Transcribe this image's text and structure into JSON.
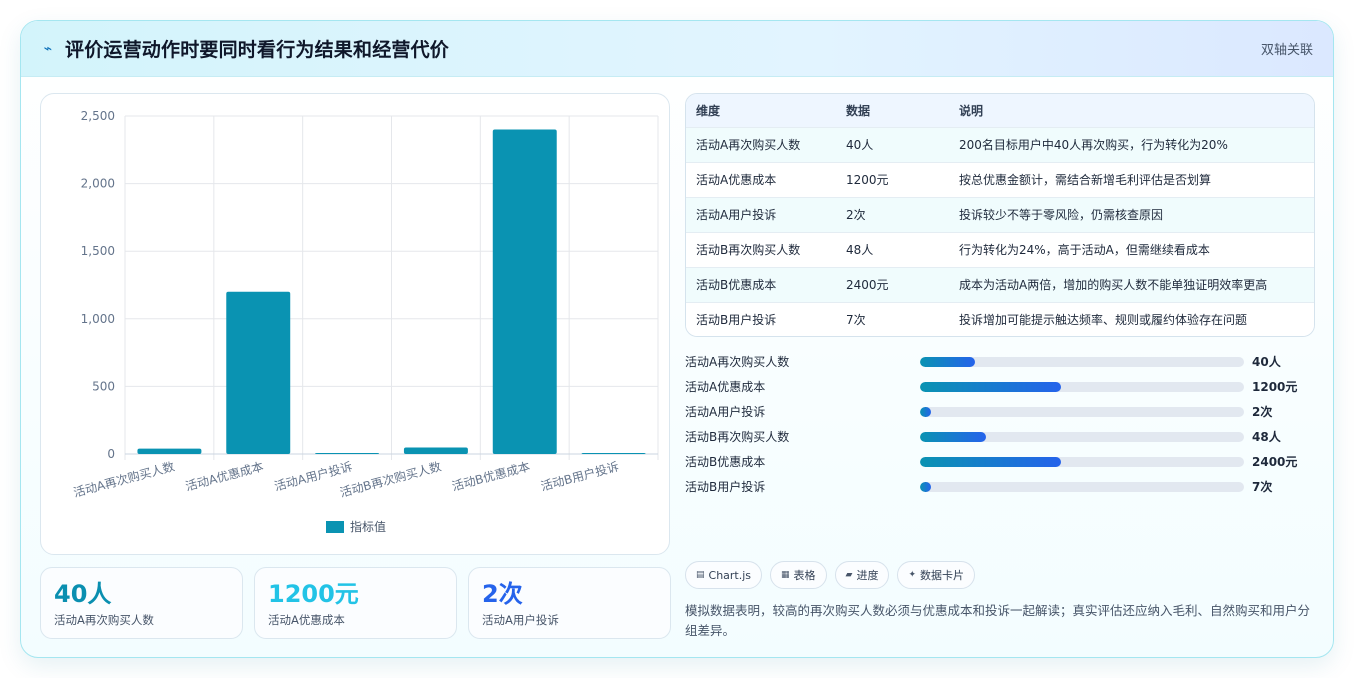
{
  "header": {
    "title": "评价运营动作时要同时看行为结果和经营代价",
    "tag": "双轴关联",
    "icon": "lightning-icon"
  },
  "chart_data": {
    "type": "bar",
    "categories": [
      "活动A再次购买人数",
      "活动A优惠成本",
      "活动A用户投诉",
      "活动B再次购买人数",
      "活动B优惠成本",
      "活动B用户投诉"
    ],
    "series": [
      {
        "name": "指标值",
        "values": [
          40,
          1200,
          2,
          48,
          2400,
          7
        ],
        "color": "#0a93b2"
      }
    ],
    "ylim": [
      0,
      2500
    ],
    "yticks": [
      "0",
      "500",
      "1,000",
      "1,500",
      "2,000",
      "2,500"
    ],
    "grid": true,
    "legend": "bottom"
  },
  "kpis": [
    {
      "value": "40人",
      "label": "活动A再次购买人数",
      "color": "#0a8fb0"
    },
    {
      "value": "1200元",
      "label": "活动A优惠成本",
      "color": "#22c3e6"
    },
    {
      "value": "2次",
      "label": "活动A用户投诉",
      "color": "#2563eb"
    }
  ],
  "table": {
    "headers": [
      "维度",
      "数据",
      "说明"
    ],
    "rows": [
      [
        "活动A再次购买人数",
        "40人",
        "200名目标用户中40人再次购买，行为转化为20%"
      ],
      [
        "活动A优惠成本",
        "1200元",
        "按总优惠金额计，需结合新增毛利评估是否划算"
      ],
      [
        "活动A用户投诉",
        "2次",
        "投诉较少不等于零风险，仍需核查原因"
      ],
      [
        "活动B再次购买人数",
        "48人",
        "行为转化为24%，高于活动A，但需继续看成本"
      ],
      [
        "活动B优惠成本",
        "2400元",
        "成本为活动A两倍，增加的购买人数不能单独证明效率更高"
      ],
      [
        "活动B用户投诉",
        "7次",
        "投诉增加可能提示触达频率、规则或履约体验存在问题"
      ]
    ]
  },
  "progress": [
    {
      "label": "活动A再次购买人数",
      "value": "40人",
      "fraction": 0.17
    },
    {
      "label": "活动A优惠成本",
      "value": "1200元",
      "fraction": 0.435
    },
    {
      "label": "活动A用户投诉",
      "value": "2次",
      "fraction": 0.035
    },
    {
      "label": "活动B再次购买人数",
      "value": "48人",
      "fraction": 0.205
    },
    {
      "label": "活动B优惠成本",
      "value": "2400元",
      "fraction": 0.435
    },
    {
      "label": "活动B用户投诉",
      "value": "7次",
      "fraction": 0.035
    }
  ],
  "chips": [
    {
      "icon": "chart-icon",
      "glyph": "▤",
      "label": "Chart.js"
    },
    {
      "icon": "table-icon",
      "glyph": "▦",
      "label": "表格"
    },
    {
      "icon": "progress-icon",
      "glyph": "▰",
      "label": "进度"
    },
    {
      "icon": "sparkle-icon",
      "glyph": "✦",
      "label": "数据卡片"
    }
  ],
  "note": "模拟数据表明，较高的再次购买人数必须与优惠成本和投诉一起解读；真实评估还应纳入毛利、自然购买和用户分组差异。"
}
